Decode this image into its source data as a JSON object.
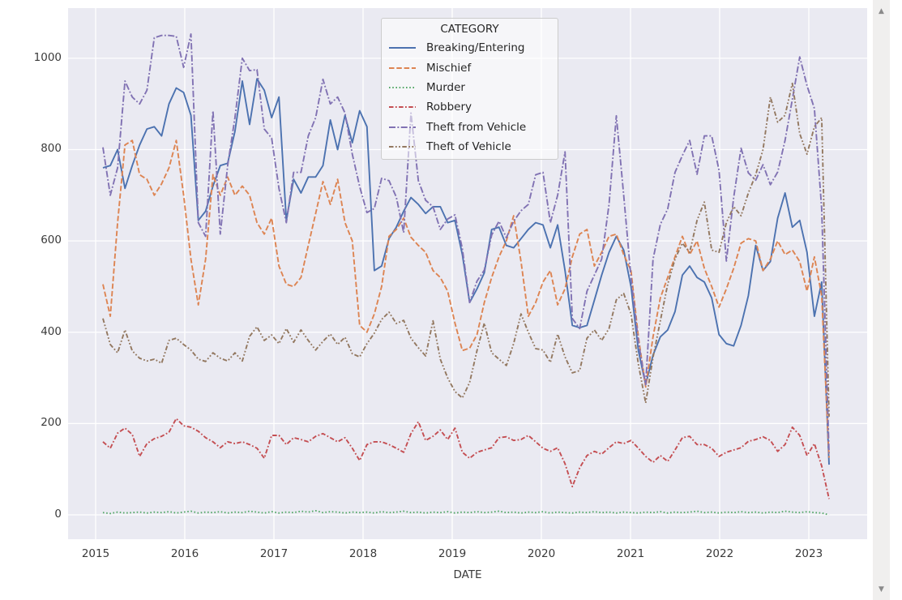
{
  "ui": {
    "scrollbar": {
      "up_icon": "▲",
      "down_icon": "▼"
    }
  },
  "chart_data": {
    "type": "line",
    "title": "",
    "xlabel": "DATE",
    "ylabel": "",
    "legend_title": "CATEGORY",
    "legend_position": "upper center",
    "grid": true,
    "plot_bg": "#eaeaf2",
    "grid_color": "#ffffff",
    "x_ticks": [
      "2015",
      "2016",
      "2017",
      "2018",
      "2019",
      "2020",
      "2021",
      "2022",
      "2023"
    ],
    "y_ticks": [
      0,
      200,
      400,
      600,
      800,
      1000
    ],
    "ylim": [
      -55,
      1110
    ],
    "x_start_month": "2015-01",
    "x_end_month": "2023-04",
    "x_frequency": "monthly",
    "series": [
      {
        "name": "Breaking/Entering",
        "color": "#4c72b0",
        "dash": "solid",
        "values": [
          760,
          765,
          800,
          715,
          765,
          810,
          845,
          850,
          830,
          900,
          935,
          925,
          875,
          645,
          665,
          720,
          765,
          770,
          840,
          950,
          855,
          955,
          930,
          870,
          915,
          645,
          735,
          705,
          740,
          740,
          765,
          865,
          800,
          875,
          815,
          885,
          850,
          535,
          545,
          605,
          630,
          665,
          695,
          680,
          660,
          675,
          675,
          640,
          645,
          570,
          465,
          495,
          530,
          625,
          630,
          590,
          585,
          605,
          625,
          640,
          635,
          585,
          635,
          535,
          415,
          410,
          415,
          470,
          525,
          575,
          610,
          580,
          500,
          360,
          285,
          350,
          390,
          405,
          445,
          525,
          545,
          520,
          510,
          475,
          395,
          375,
          370,
          415,
          480,
          590,
          535,
          555,
          650,
          705,
          630,
          645,
          575,
          435,
          510,
          110
        ]
      },
      {
        "name": "Mischief",
        "color": "#dd8452",
        "dash": "dashed",
        "values": [
          505,
          435,
          640,
          810,
          820,
          745,
          735,
          700,
          725,
          760,
          820,
          700,
          560,
          460,
          560,
          745,
          700,
          740,
          700,
          720,
          700,
          640,
          615,
          650,
          545,
          505,
          500,
          520,
          590,
          660,
          730,
          680,
          735,
          640,
          600,
          415,
          400,
          440,
          500,
          610,
          625,
          650,
          608,
          590,
          575,
          535,
          520,
          490,
          420,
          360,
          365,
          395,
          465,
          520,
          565,
          600,
          655,
          555,
          435,
          465,
          510,
          535,
          460,
          495,
          565,
          615,
          625,
          545,
          575,
          610,
          615,
          570,
          535,
          390,
          280,
          390,
          475,
          520,
          565,
          610,
          570,
          600,
          540,
          500,
          455,
          495,
          540,
          595,
          605,
          600,
          535,
          560,
          600,
          570,
          580,
          555,
          490,
          565,
          480,
          125
        ]
      },
      {
        "name": "Murder",
        "color": "#55a868",
        "dash": "dotted",
        "values": [
          5,
          3,
          6,
          4,
          5,
          6,
          4,
          6,
          5,
          7,
          4,
          6,
          8,
          4,
          6,
          5,
          7,
          4,
          6,
          5,
          8,
          6,
          4,
          7,
          4,
          6,
          5,
          8,
          6,
          9,
          5,
          7,
          6,
          4,
          6,
          5,
          6,
          4,
          7,
          5,
          6,
          8,
          5,
          6,
          4,
          6,
          5,
          7,
          4,
          6,
          5,
          7,
          5,
          6,
          8,
          5,
          6,
          4,
          6,
          5,
          7,
          4,
          6,
          5,
          4,
          6,
          5,
          7,
          5,
          6,
          4,
          6,
          5,
          4,
          6,
          5,
          7,
          4,
          6,
          5,
          6,
          8,
          5,
          6,
          4,
          6,
          5,
          7,
          5,
          6,
          4,
          6,
          5,
          8,
          6,
          5,
          7,
          5,
          4,
          0
        ]
      },
      {
        "name": "Robbery",
        "color": "#c44e52",
        "dash": "dashdot",
        "values": [
          160,
          146,
          179,
          190,
          176,
          128,
          156,
          167,
          172,
          181,
          211,
          195,
          192,
          183,
          169,
          160,
          147,
          160,
          156,
          160,
          154,
          146,
          124,
          174,
          174,
          154,
          169,
          165,
          160,
          172,
          178,
          169,
          160,
          169,
          146,
          119,
          154,
          160,
          160,
          154,
          146,
          137,
          178,
          204,
          163,
          172,
          186,
          165,
          190,
          137,
          124,
          137,
          142,
          147,
          169,
          171,
          163,
          165,
          174,
          160,
          146,
          139,
          147,
          112,
          62,
          103,
          130,
          139,
          133,
          147,
          160,
          156,
          163,
          146,
          128,
          115,
          130,
          117,
          142,
          169,
          172,
          154,
          154,
          146,
          128,
          137,
          142,
          147,
          161,
          165,
          171,
          163,
          139,
          154,
          192,
          174,
          130,
          156,
          107,
          35
        ]
      },
      {
        "name": "Theft from Vehicle",
        "color": "#8172b3",
        "dash": "longdashdot",
        "values": [
          805,
          700,
          760,
          950,
          915,
          900,
          930,
          1045,
          1050,
          1050,
          1048,
          980,
          1053,
          640,
          610,
          885,
          615,
          765,
          870,
          1000,
          973,
          975,
          845,
          825,
          715,
          640,
          750,
          750,
          830,
          870,
          954,
          900,
          915,
          880,
          790,
          719,
          662,
          671,
          737,
          732,
          696,
          618,
          880,
          732,
          689,
          675,
          625,
          648,
          657,
          583,
          465,
          512,
          536,
          613,
          643,
          607,
          643,
          666,
          680,
          745,
          750,
          640,
          700,
          795,
          430,
          408,
          490,
          525,
          560,
          680,
          874,
          700,
          520,
          380,
          285,
          560,
          636,
          670,
          750,
          787,
          820,
          746,
          830,
          830,
          755,
          556,
          695,
          803,
          749,
          733,
          767,
          723,
          751,
          820,
          910,
          1003,
          940,
          890,
          670,
          135
        ]
      },
      {
        "name": "Theft of Vehicle",
        "color": "#937860",
        "dash": "dashdotdot",
        "values": [
          430,
          373,
          355,
          405,
          359,
          343,
          337,
          341,
          332,
          382,
          387,
          373,
          361,
          341,
          336,
          355,
          343,
          337,
          355,
          337,
          391,
          412,
          382,
          394,
          375,
          408,
          378,
          405,
          382,
          361,
          380,
          396,
          373,
          389,
          353,
          346,
          375,
          398,
          428,
          444,
          419,
          426,
          387,
          366,
          348,
          425,
          341,
          300,
          270,
          256,
          290,
          360,
          420,
          355,
          341,
          327,
          375,
          440,
          400,
          364,
          361,
          334,
          396,
          346,
          311,
          316,
          387,
          405,
          382,
          408,
          471,
          485,
          440,
          330,
          245,
          345,
          425,
          505,
          560,
          595,
          575,
          645,
          685,
          580,
          575,
          640,
          675,
          655,
          705,
          745,
          800,
          915,
          860,
          875,
          945,
          835,
          790,
          850,
          870,
          215
        ]
      }
    ]
  }
}
